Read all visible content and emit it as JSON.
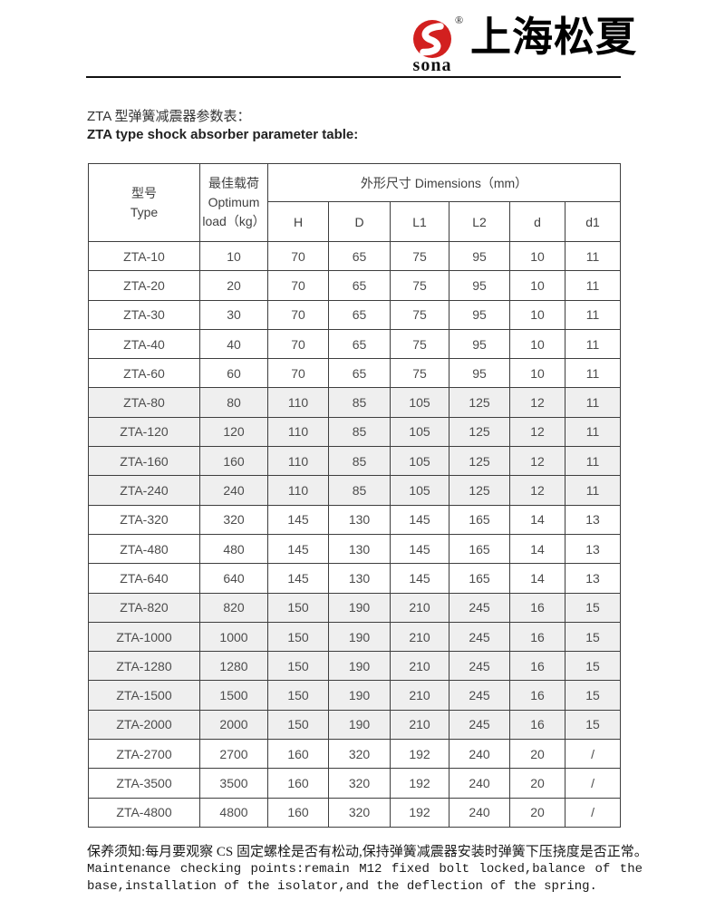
{
  "header": {
    "logo": {
      "wordmark": "sona",
      "registered_mark": "®",
      "brand_name_cn": "上海松夏",
      "brand_red": "#d2201f"
    }
  },
  "titles": {
    "cn": "ZTA 型弹簧减震器参数表：",
    "en": "ZTA type shock absorber parameter table:"
  },
  "table": {
    "header": {
      "type_cn": "型号",
      "type_en": "Type",
      "load_lines": [
        "最佳载荷",
        "Optimum",
        "load（kg）"
      ],
      "dims_label": "外形尺寸 Dimensions（mm）",
      "dim_cols": [
        "H",
        "D",
        "L1",
        "L2",
        "d",
        "d1"
      ]
    },
    "shaded_row_bg": "#efefef",
    "rows": [
      {
        "cells": [
          "ZTA-10",
          "10",
          "70",
          "65",
          "75",
          "95",
          "10",
          "11"
        ],
        "shaded": false
      },
      {
        "cells": [
          "ZTA-20",
          "20",
          "70",
          "65",
          "75",
          "95",
          "10",
          "11"
        ],
        "shaded": false
      },
      {
        "cells": [
          "ZTA-30",
          "30",
          "70",
          "65",
          "75",
          "95",
          "10",
          "11"
        ],
        "shaded": false
      },
      {
        "cells": [
          "ZTA-40",
          "40",
          "70",
          "65",
          "75",
          "95",
          "10",
          "11"
        ],
        "shaded": false
      },
      {
        "cells": [
          "ZTA-60",
          "60",
          "70",
          "65",
          "75",
          "95",
          "10",
          "11"
        ],
        "shaded": false
      },
      {
        "cells": [
          "ZTA-80",
          "80",
          "110",
          "85",
          "105",
          "125",
          "12",
          "11"
        ],
        "shaded": true
      },
      {
        "cells": [
          "ZTA-120",
          "120",
          "110",
          "85",
          "105",
          "125",
          "12",
          "11"
        ],
        "shaded": true
      },
      {
        "cells": [
          "ZTA-160",
          "160",
          "110",
          "85",
          "105",
          "125",
          "12",
          "11"
        ],
        "shaded": true
      },
      {
        "cells": [
          "ZTA-240",
          "240",
          "110",
          "85",
          "105",
          "125",
          "12",
          "11"
        ],
        "shaded": true
      },
      {
        "cells": [
          "ZTA-320",
          "320",
          "145",
          "130",
          "145",
          "165",
          "14",
          "13"
        ],
        "shaded": false
      },
      {
        "cells": [
          "ZTA-480",
          "480",
          "145",
          "130",
          "145",
          "165",
          "14",
          "13"
        ],
        "shaded": false
      },
      {
        "cells": [
          "ZTA-640",
          "640",
          "145",
          "130",
          "145",
          "165",
          "14",
          "13"
        ],
        "shaded": false
      },
      {
        "cells": [
          "ZTA-820",
          "820",
          "150",
          "190",
          "210",
          "245",
          "16",
          "15"
        ],
        "shaded": true
      },
      {
        "cells": [
          "ZTA-1000",
          "1000",
          "150",
          "190",
          "210",
          "245",
          "16",
          "15"
        ],
        "shaded": true
      },
      {
        "cells": [
          "ZTA-1280",
          "1280",
          "150",
          "190",
          "210",
          "245",
          "16",
          "15"
        ],
        "shaded": true
      },
      {
        "cells": [
          "ZTA-1500",
          "1500",
          "150",
          "190",
          "210",
          "245",
          "16",
          "15"
        ],
        "shaded": true
      },
      {
        "cells": [
          "ZTA-2000",
          "2000",
          "150",
          "190",
          "210",
          "245",
          "16",
          "15"
        ],
        "shaded": true
      },
      {
        "cells": [
          "ZTA-2700",
          "2700",
          "160",
          "320",
          "192",
          "240",
          "20",
          "/"
        ],
        "shaded": false
      },
      {
        "cells": [
          "ZTA-3500",
          "3500",
          "160",
          "320",
          "192",
          "240",
          "20",
          "/"
        ],
        "shaded": false
      },
      {
        "cells": [
          "ZTA-4800",
          "4800",
          "160",
          "320",
          "192",
          "240",
          "20",
          "/"
        ],
        "shaded": false
      }
    ]
  },
  "footer": {
    "cn": "保养须知:每月要观察 CS 固定螺栓是否有松动,保持弹簧减震器安装时弹簧下压挠度是否正常。",
    "en1": "Maintenance checking points:remain M12 fixed bolt locked,balance of the",
    "en2": "base,installation of the isolator,and the deflection of the spring."
  }
}
